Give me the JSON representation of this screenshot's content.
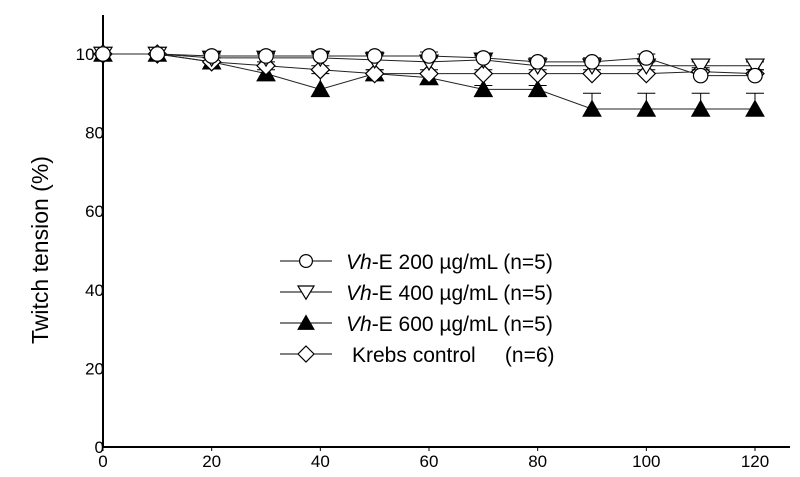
{
  "chart_data": {
    "type": "line",
    "title": "",
    "xlabel": "",
    "ylabel": "Twitch tension (%)",
    "xlim": [
      0,
      120
    ],
    "ylim": [
      0,
      110
    ],
    "xticks": [
      0,
      20,
      40,
      60,
      80,
      100,
      120
    ],
    "yticks": [
      0,
      20,
      40,
      60,
      80,
      100
    ],
    "grid": false,
    "legend_position": "center",
    "x": [
      0,
      10,
      20,
      30,
      40,
      50,
      60,
      70,
      80,
      90,
      100,
      110,
      120
    ],
    "series": [
      {
        "name": "Vh-E 200 µg/mL (n=5)",
        "legend_italic": "Vh",
        "legend_rest": "-E 200 µg/mL (n=5)",
        "marker": "circle",
        "values": [
          100,
          100,
          99.5,
          99.5,
          99.5,
          99.5,
          99.5,
          99,
          98,
          98,
          99,
          94.5,
          94.5
        ],
        "err": [
          0,
          0,
          1,
          1,
          1,
          1,
          1,
          1,
          1,
          1,
          1,
          1.5,
          1.5
        ]
      },
      {
        "name": "Vh-E 400 µg/mL (n=5)",
        "legend_italic": "Vh",
        "legend_rest": "-E 400 µg/mL (n=5)",
        "marker": "triangle-down",
        "values": [
          100,
          100,
          99,
          99,
          99,
          98.5,
          98,
          98.5,
          97,
          97,
          97,
          97,
          97
        ],
        "err": [
          0,
          0,
          1,
          1,
          1,
          1,
          1,
          1,
          1,
          1,
          1,
          1,
          1
        ]
      },
      {
        "name": "Vh-E 600 µg/mL (n=5)",
        "legend_italic": "Vh",
        "legend_rest": "-E 600 µg/mL (n=5)",
        "marker": "triangle-up-filled",
        "values": [
          100,
          100,
          98,
          95,
          91,
          95,
          94,
          91,
          91,
          86,
          86,
          86,
          86
        ],
        "err": [
          0,
          0,
          1,
          1,
          4,
          1,
          1,
          1,
          1,
          4,
          4,
          4,
          4
        ]
      },
      {
        "name": "Krebs control (n=6)",
        "legend_italic": "",
        "legend_rest": "Krebs control     (n=6)",
        "marker": "diamond",
        "values": [
          100,
          100,
          98,
          97,
          96,
          95,
          95,
          95,
          95,
          95,
          95,
          95.5,
          95
        ],
        "err": [
          0,
          0,
          1,
          1,
          1,
          1,
          1,
          1,
          1,
          1,
          1,
          1,
          1
        ]
      }
    ]
  }
}
